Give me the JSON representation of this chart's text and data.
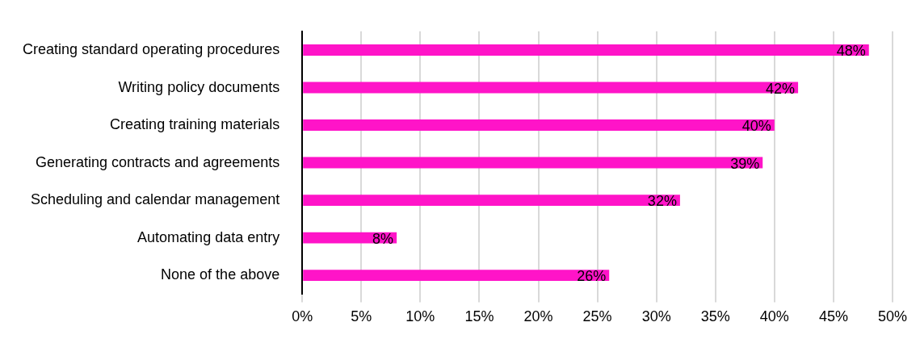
{
  "chart_data": {
    "type": "bar",
    "orientation": "horizontal",
    "categories": [
      "Creating standard operating procedures",
      "Writing policy documents",
      "Creating training materials",
      "Generating contracts and agreements",
      "Scheduling and calendar management",
      "Automating data entry",
      "None of the above"
    ],
    "values": [
      48,
      42,
      40,
      39,
      32,
      8,
      26
    ],
    "value_labels": [
      "48%",
      "42%",
      "40%",
      "39%",
      "32%",
      "8%",
      "26%"
    ],
    "color": "#ff14c8",
    "xlim": [
      0,
      50
    ],
    "xticks": [
      {
        "value": 0,
        "label": "0%"
      },
      {
        "value": 5,
        "label": "5%"
      },
      {
        "value": 10,
        "label": "10%"
      },
      {
        "value": 15,
        "label": "15%"
      },
      {
        "value": 20,
        "label": "20%"
      },
      {
        "value": 25,
        "label": "25%"
      },
      {
        "value": 30,
        "label": "30%"
      },
      {
        "value": 35,
        "label": "35%"
      },
      {
        "value": 40,
        "label": "40%"
      },
      {
        "value": 45,
        "label": "45%"
      },
      {
        "value": 50,
        "label": "50%"
      }
    ],
    "grid": "x",
    "legend": false
  }
}
